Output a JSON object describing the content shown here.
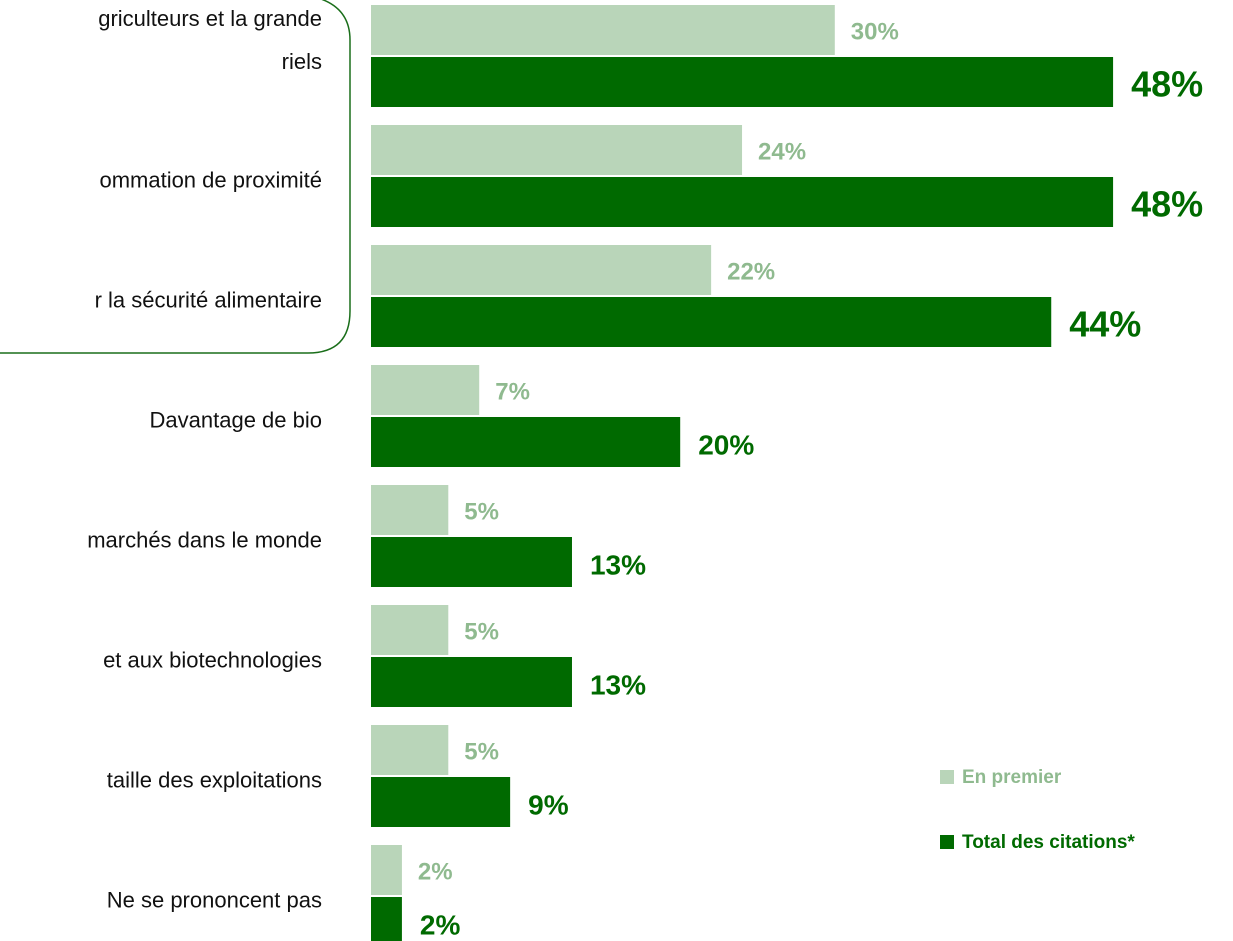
{
  "chart_data": {
    "type": "bar",
    "orientation": "horizontal",
    "categories": [
      "griculteurs et la grande\nriels",
      "ommation de proximité",
      "r la sécurité alimentaire",
      "Davantage de bio",
      "marchés dans le monde",
      "et aux biotechnologies",
      "taille des exploitations",
      "Ne se prononcent pas"
    ],
    "series": [
      {
        "name": "En premier",
        "color": "#b9d5b9",
        "label_color": "#8fba8f",
        "values": [
          30,
          24,
          22,
          7,
          5,
          5,
          5,
          2
        ],
        "value_labels": [
          "30%",
          "24%",
          "22%",
          "7%",
          "5%",
          "5%",
          "5%",
          "2%"
        ]
      },
      {
        "name": "Total des citations*",
        "color": "#006a00",
        "label_color": "#006a00",
        "values": [
          48,
          48,
          44,
          20,
          13,
          13,
          9,
          2
        ],
        "value_labels": [
          "48%",
          "48%",
          "44%",
          "20%",
          "13%",
          "13%",
          "9%",
          "2%"
        ]
      }
    ]
  }
}
